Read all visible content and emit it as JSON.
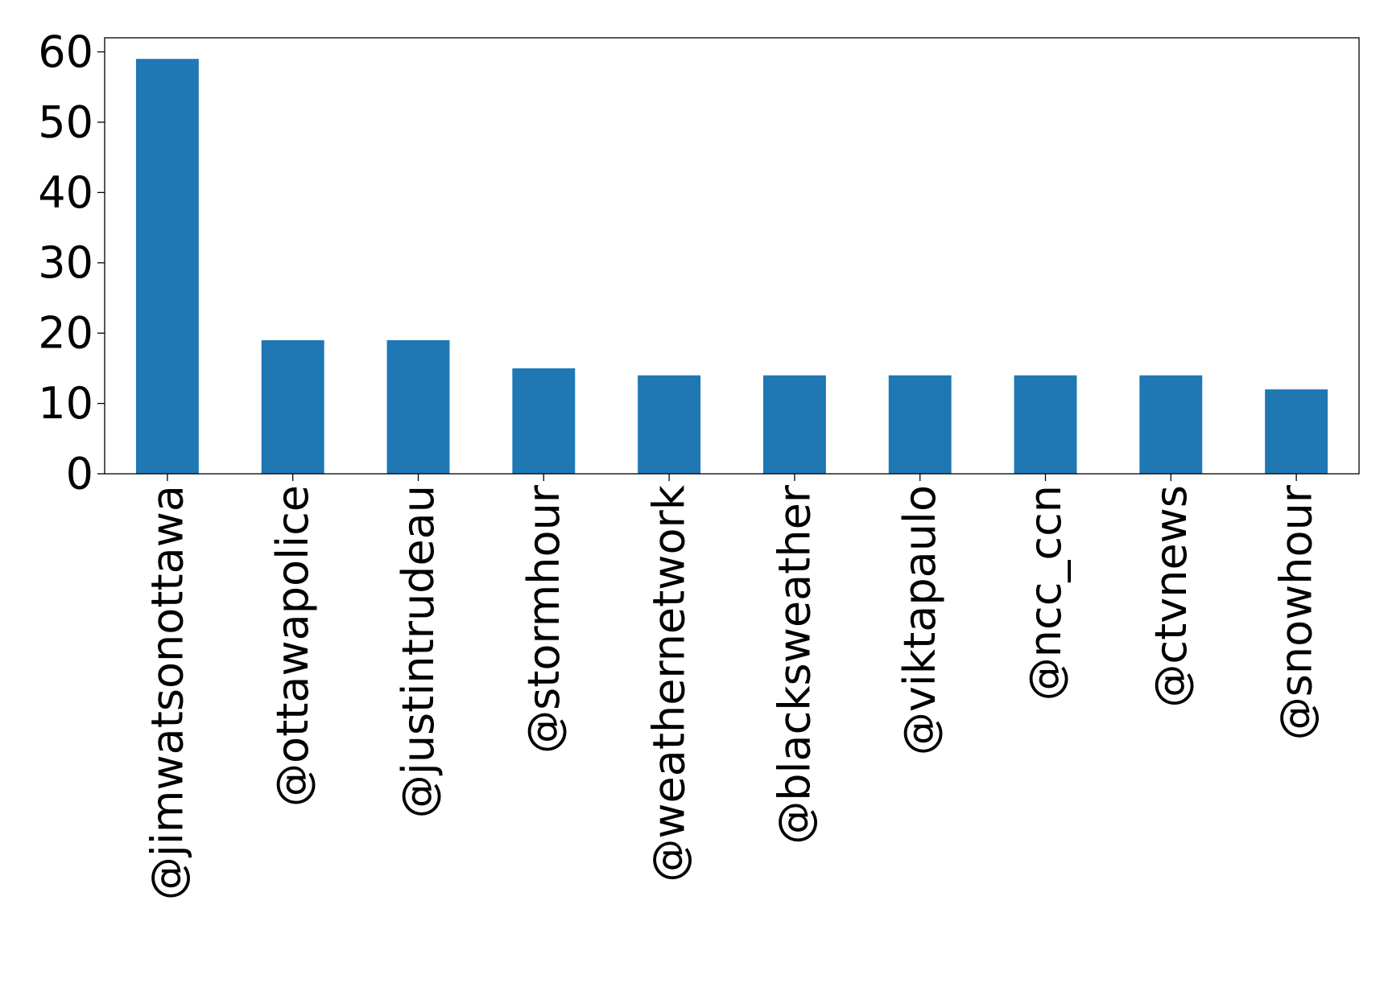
{
  "chart_data": {
    "type": "bar",
    "title": "",
    "xlabel": "",
    "ylabel": "",
    "categories": [
      "@jimwatsonottawa",
      "@ottawapolice",
      "@justintrudeau",
      "@stormhour",
      "@weathernetwork",
      "@blacksweather",
      "@viktapaulo",
      "@ncc_ccn",
      "@ctvnews",
      "@snowhour"
    ],
    "values": [
      59,
      19,
      19,
      15,
      14,
      14,
      14,
      14,
      14,
      12
    ],
    "ylim": [
      0,
      62
    ],
    "yticks": [
      0,
      10,
      20,
      30,
      40,
      50,
      60
    ],
    "bar_color": "#1f77b4",
    "grid": false,
    "legend": "none"
  }
}
